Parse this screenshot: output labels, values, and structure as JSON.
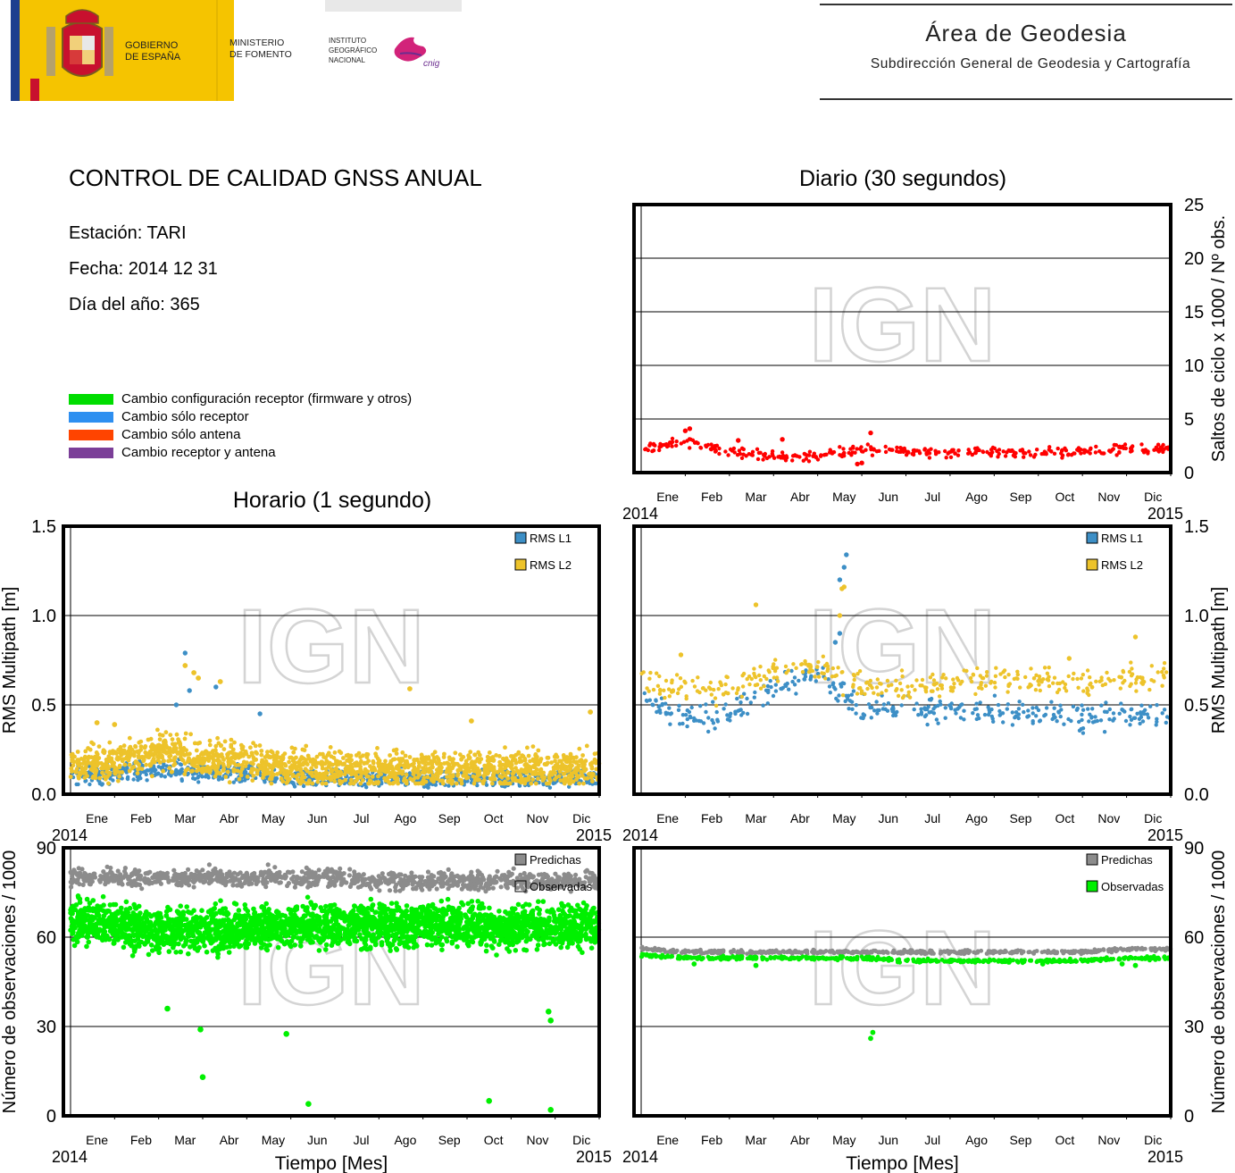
{
  "header": {
    "gobierno_line1": "GOBIERNO",
    "gobierno_line2": "DE ESPAÑA",
    "ministerio_line1": "MINISTERIO",
    "ministerio_line2": "DE FOMENTO",
    "ign_line1": "INSTITUTO",
    "ign_line2": "GEOGRÁFICO",
    "ign_line3": "NACIONAL",
    "cnig_logo": "cnig",
    "area_title": "Área de Geodesia",
    "area_subtitle": "Subdirección General de Geodesia y Cartografía"
  },
  "report": {
    "title": "CONTROL DE CALIDAD GNSS ANUAL",
    "station": "Estación: TARI",
    "date": "Fecha: 2014 12 31",
    "doy": "Día del año: 365"
  },
  "change_legend": [
    {
      "label": "Cambio configuración receptor (firmware y otros)",
      "color": "#00dd00"
    },
    {
      "label": "Cambio sólo receptor",
      "color": "#2e8ff0"
    },
    {
      "label": "Cambio sólo antena",
      "color": "#ff4400"
    },
    {
      "label": "Cambio receptor y antena",
      "color": "#7b3f98"
    }
  ],
  "watermark": "IGN",
  "colors": {
    "rms_l1": "#3d8fc6",
    "rms_l2": "#edc32b",
    "predicted": "#8c8c8c",
    "observed": "#00f000",
    "cycle_slips": "#ff0000"
  },
  "chart_data": [
    {
      "id": "daily-slips",
      "type": "scatter",
      "title": "Diario (30 segundos)",
      "ylabel": "Saltos de ciclo x 1000 / Nº obs.",
      "xlabel": "",
      "x_start_label": "2014",
      "x_end_label": "2015",
      "month_labels": [
        "Ene",
        "Feb",
        "Mar",
        "Abr",
        "May",
        "Jun",
        "Jul",
        "Ago",
        "Sep",
        "Oct",
        "Nov",
        "Dic"
      ],
      "ylim": [
        0,
        25
      ],
      "yticks": [
        0,
        5,
        10,
        15,
        20,
        25
      ],
      "grid": true,
      "series": [
        {
          "values_by_month": [
            2.1,
            2.9,
            1.9,
            1.6,
            1.5,
            2.2,
            2.0,
            1.9,
            1.9,
            1.8,
            2.1,
            2.2
          ]
        }
      ]
    },
    {
      "id": "hourly-multipath",
      "type": "scatter",
      "title": "Horario (1 segundo)",
      "ylabel": "RMS Multipath [m]",
      "xlabel": "",
      "x_start_label": "2014",
      "x_end_label": "2015",
      "month_labels": [
        "Ene",
        "Feb",
        "Mar",
        "Abr",
        "May",
        "Jun",
        "Jul",
        "Ago",
        "Sep",
        "Oct",
        "Nov",
        "Dic"
      ],
      "ylim": [
        0,
        1.5
      ],
      "yticks": [
        "0.0",
        "0.5",
        "1.0",
        "1.5"
      ],
      "grid": true,
      "legend": [
        "RMS L1",
        "RMS L2"
      ],
      "series": [
        {
          "name": "RMS L1",
          "values_by_month": [
            0.11,
            0.11,
            0.14,
            0.12,
            0.11,
            0.09,
            0.09,
            0.09,
            0.09,
            0.09,
            0.09,
            0.09
          ]
        },
        {
          "name": "RMS L2",
          "values_by_month": [
            0.16,
            0.18,
            0.24,
            0.21,
            0.19,
            0.14,
            0.14,
            0.14,
            0.14,
            0.14,
            0.14,
            0.14
          ]
        }
      ]
    },
    {
      "id": "daily-multipath",
      "type": "scatter",
      "title": "",
      "ylabel": "RMS Multipath [m]",
      "xlabel": "",
      "x_start_label": "2014",
      "x_end_label": "2015",
      "month_labels": [
        "Ene",
        "Feb",
        "Mar",
        "Abr",
        "May",
        "Jun",
        "Jul",
        "Ago",
        "Sep",
        "Oct",
        "Nov",
        "Dic"
      ],
      "ylim": [
        0,
        1.5
      ],
      "yticks": [
        "0.0",
        "0.5",
        "1.0",
        "1.5"
      ],
      "grid": true,
      "legend": [
        "RMS L1",
        "RMS L2"
      ],
      "series": [
        {
          "name": "RMS L1",
          "values_by_month": [
            0.55,
            0.42,
            0.46,
            0.6,
            0.68,
            0.47,
            0.47,
            0.48,
            0.46,
            0.46,
            0.43,
            0.44
          ]
        },
        {
          "name": "RMS L2",
          "values_by_month": [
            0.63,
            0.58,
            0.6,
            0.68,
            0.72,
            0.6,
            0.6,
            0.62,
            0.64,
            0.64,
            0.62,
            0.65
          ]
        }
      ]
    },
    {
      "id": "hourly-observations",
      "type": "scatter",
      "title": "",
      "ylabel": "Número de observaciones / 1000",
      "xlabel": "Tiempo [Mes]",
      "x_start_label": "2014",
      "x_end_label": "2015",
      "month_labels": [
        "Ene",
        "Feb",
        "Mar",
        "Abr",
        "May",
        "Jun",
        "Jul",
        "Ago",
        "Sep",
        "Oct",
        "Nov",
        "Dic"
      ],
      "ylim": [
        0,
        90
      ],
      "yticks": [
        0,
        30,
        60,
        90
      ],
      "grid": true,
      "legend": [
        "Predichas",
        "Observadas"
      ],
      "series": [
        {
          "name": "Predichas",
          "values_by_month": [
            80,
            80,
            80,
            80,
            80,
            80,
            80,
            79,
            79,
            79,
            79,
            79
          ]
        },
        {
          "name": "Observadas",
          "values_by_month": [
            65,
            64,
            62,
            63,
            63,
            64,
            64,
            64,
            64,
            64,
            63,
            64
          ]
        }
      ]
    },
    {
      "id": "daily-observations",
      "type": "scatter",
      "title": "",
      "ylabel": "Número de observaciones / 1000",
      "xlabel": "Tiempo [Mes]",
      "x_start_label": "2014",
      "x_end_label": "2015",
      "month_labels": [
        "Ene",
        "Feb",
        "Mar",
        "Abr",
        "May",
        "Jun",
        "Jul",
        "Ago",
        "Sep",
        "Oct",
        "Nov",
        "Dic"
      ],
      "ylim": [
        0,
        90
      ],
      "yticks": [
        0,
        30,
        60,
        90
      ],
      "grid": true,
      "legend": [
        "Predichas",
        "Observadas"
      ],
      "series": [
        {
          "name": "Predichas",
          "values_by_month": [
            56,
            55,
            55,
            55,
            55,
            55,
            55,
            55,
            55,
            55,
            55,
            56
          ]
        },
        {
          "name": "Observadas",
          "values_by_month": [
            54,
            53,
            53,
            53,
            53,
            53,
            52,
            52,
            52,
            52,
            52,
            53
          ]
        }
      ]
    }
  ]
}
